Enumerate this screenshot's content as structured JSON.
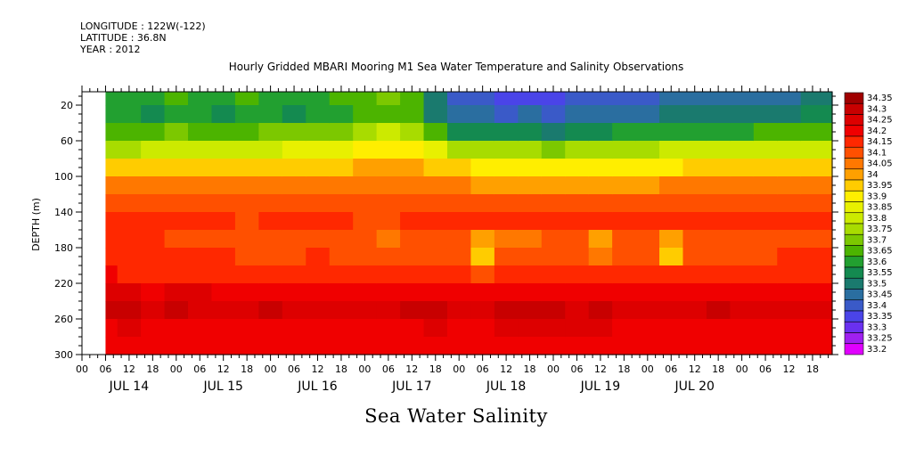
{
  "header": {
    "longitude": "LONGITUDE : 122W(-122)",
    "latitude": "LATITUDE : 36.8N",
    "year": "YEAR : 2012"
  },
  "chart_data": {
    "type": "heatmap",
    "title": "Hourly Gridded MBARI Mooring M1 Sea Water Temperature and Salinity Observations",
    "subtitle": "Sea Water Salinity",
    "ylabel": "DEPTH (m)",
    "ylim": [
      300,
      5
    ],
    "y_ticks": [
      20,
      60,
      100,
      140,
      180,
      220,
      260,
      300
    ],
    "x_hour_ticks": [
      "00",
      "06",
      "12",
      "18",
      "00",
      "06",
      "12",
      "18",
      "00",
      "06",
      "12",
      "18",
      "00",
      "06",
      "12",
      "18",
      "00",
      "06",
      "12",
      "18",
      "00",
      "06",
      "12",
      "18",
      "00",
      "06",
      "12",
      "18",
      "00",
      "06",
      "12",
      "18"
    ],
    "x_day_labels": [
      "JUL 14",
      "JUL 15",
      "JUL 16",
      "JUL 17",
      "JUL 18",
      "JUL 19",
      "JUL 20"
    ],
    "x_range_hours": [
      0,
      191
    ],
    "data_start_hour": 6,
    "colorbar_levels": [
      "34.35",
      "34.3",
      "34.25",
      "34.2",
      "34.15",
      "34.1",
      "34.05",
      "34",
      "33.95",
      "33.9",
      "33.85",
      "33.8",
      "33.75",
      "33.7",
      "33.65",
      "33.6",
      "33.55",
      "33.5",
      "33.45",
      "33.4",
      "33.35",
      "33.3",
      "33.25",
      "33.2"
    ],
    "colorbar_colors": [
      "#a00000",
      "#c80000",
      "#dd0000",
      "#f00000",
      "#ff2800",
      "#ff5000",
      "#ff7800",
      "#ffa000",
      "#ffcc00",
      "#ffee00",
      "#e8f000",
      "#ccea00",
      "#a8dc00",
      "#7cc800",
      "#4cb400",
      "#22a030",
      "#148a50",
      "#1a7a6e",
      "#2a6ea0",
      "#3a5ac8",
      "#4a44e8",
      "#6a30f0",
      "#a020f0",
      "#e000ff"
    ],
    "time_hours": [
      6,
      12,
      18,
      24,
      30,
      36,
      42,
      48,
      54,
      60,
      66,
      72,
      78,
      84,
      90,
      96,
      102,
      108,
      114,
      120,
      126,
      132,
      138,
      144,
      150,
      156,
      162,
      168,
      174,
      180,
      186,
      191
    ],
    "depth_bins": [
      10,
      30,
      50,
      70,
      90,
      110,
      130,
      150,
      170,
      190,
      210,
      230,
      250,
      270,
      290
    ],
    "salinity": [
      [
        33.6,
        33.6,
        33.65,
        33.75,
        33.95,
        34.05,
        34.1,
        34.15,
        34.15,
        34.15,
        34.2,
        34.25,
        34.3,
        34.2,
        34.2
      ],
      [
        33.6,
        33.6,
        33.65,
        33.75,
        33.95,
        34.05,
        34.1,
        34.15,
        34.15,
        34.15,
        34.15,
        34.25,
        34.3,
        34.25,
        34.2
      ],
      [
        33.6,
        33.55,
        33.65,
        33.8,
        33.95,
        34.05,
        34.1,
        34.15,
        34.15,
        34.15,
        34.15,
        34.2,
        34.25,
        34.2,
        34.2
      ],
      [
        33.65,
        33.6,
        33.7,
        33.8,
        33.95,
        34.05,
        34.1,
        34.15,
        34.1,
        34.15,
        34.15,
        34.25,
        34.3,
        34.2,
        34.2
      ],
      [
        33.6,
        33.6,
        33.65,
        33.8,
        33.95,
        34.05,
        34.1,
        34.15,
        34.1,
        34.15,
        34.15,
        34.25,
        34.25,
        34.2,
        34.2
      ],
      [
        33.6,
        33.55,
        33.65,
        33.8,
        33.95,
        34.05,
        34.1,
        34.15,
        34.1,
        34.15,
        34.15,
        34.2,
        34.25,
        34.2,
        34.2
      ],
      [
        33.65,
        33.6,
        33.65,
        33.8,
        33.95,
        34.05,
        34.1,
        34.1,
        34.1,
        34.1,
        34.15,
        34.2,
        34.25,
        34.2,
        34.2
      ],
      [
        33.6,
        33.6,
        33.7,
        33.8,
        33.95,
        34.05,
        34.1,
        34.15,
        34.1,
        34.1,
        34.15,
        34.2,
        34.3,
        34.2,
        34.2
      ],
      [
        33.6,
        33.55,
        33.7,
        33.85,
        33.95,
        34.05,
        34.1,
        34.15,
        34.1,
        34.1,
        34.15,
        34.2,
        34.25,
        34.2,
        34.2
      ],
      [
        33.6,
        33.6,
        33.7,
        33.85,
        33.95,
        34.05,
        34.1,
        34.15,
        34.1,
        34.15,
        34.15,
        34.2,
        34.25,
        34.2,
        34.2
      ],
      [
        33.65,
        33.6,
        33.7,
        33.85,
        33.95,
        34.05,
        34.1,
        34.15,
        34.1,
        34.1,
        34.15,
        34.2,
        34.25,
        34.2,
        34.2
      ],
      [
        33.65,
        33.65,
        33.75,
        33.9,
        34.0,
        34.05,
        34.1,
        34.1,
        34.1,
        34.1,
        34.15,
        34.2,
        34.25,
        34.2,
        34.2
      ],
      [
        33.7,
        33.65,
        33.8,
        33.9,
        34.0,
        34.05,
        34.1,
        34.1,
        34.05,
        34.1,
        34.15,
        34.2,
        34.25,
        34.2,
        34.2
      ],
      [
        33.65,
        33.65,
        33.75,
        33.9,
        34.0,
        34.05,
        34.1,
        34.15,
        34.1,
        34.1,
        34.15,
        34.2,
        34.3,
        34.2,
        34.2
      ],
      [
        33.5,
        33.5,
        33.65,
        33.85,
        33.95,
        34.05,
        34.1,
        34.15,
        34.1,
        34.1,
        34.15,
        34.2,
        34.3,
        34.25,
        34.2
      ],
      [
        33.4,
        33.45,
        33.55,
        33.75,
        33.95,
        34.05,
        34.1,
        34.15,
        34.1,
        34.1,
        34.15,
        34.2,
        34.25,
        34.2,
        34.2
      ],
      [
        33.4,
        33.45,
        33.55,
        33.75,
        33.9,
        34.0,
        34.1,
        34.15,
        34.0,
        33.95,
        34.1,
        34.2,
        34.25,
        34.2,
        34.2
      ],
      [
        33.35,
        33.4,
        33.55,
        33.75,
        33.9,
        34.0,
        34.1,
        34.15,
        34.05,
        34.1,
        34.15,
        34.2,
        34.3,
        34.25,
        34.2
      ],
      [
        33.35,
        33.45,
        33.55,
        33.75,
        33.9,
        34.0,
        34.1,
        34.15,
        34.05,
        34.1,
        34.15,
        34.2,
        34.3,
        34.25,
        34.2
      ],
      [
        33.35,
        33.4,
        33.5,
        33.7,
        33.9,
        34.0,
        34.1,
        34.15,
        34.1,
        34.1,
        34.15,
        34.2,
        34.3,
        34.25,
        34.2
      ],
      [
        33.4,
        33.45,
        33.55,
        33.75,
        33.9,
        34.0,
        34.1,
        34.15,
        34.1,
        34.1,
        34.15,
        34.2,
        34.25,
        34.25,
        34.2
      ],
      [
        33.4,
        33.45,
        33.55,
        33.75,
        33.9,
        34.0,
        34.1,
        34.15,
        34.0,
        34.05,
        34.15,
        34.2,
        34.3,
        34.25,
        34.2
      ],
      [
        33.4,
        33.45,
        33.6,
        33.75,
        33.9,
        34.0,
        34.1,
        34.15,
        34.1,
        34.1,
        34.15,
        34.2,
        34.25,
        34.2,
        34.2
      ],
      [
        33.4,
        33.45,
        33.6,
        33.75,
        33.9,
        34.0,
        34.1,
        34.15,
        34.1,
        34.1,
        34.15,
        34.2,
        34.25,
        34.2,
        34.2
      ],
      [
        33.45,
        33.5,
        33.6,
        33.8,
        33.9,
        34.05,
        34.1,
        34.15,
        34.0,
        33.95,
        34.15,
        34.2,
        34.25,
        34.2,
        34.2
      ],
      [
        33.45,
        33.5,
        33.6,
        33.8,
        33.95,
        34.05,
        34.1,
        34.15,
        34.1,
        34.1,
        34.15,
        34.2,
        34.25,
        34.2,
        34.2
      ],
      [
        33.45,
        33.5,
        33.6,
        33.8,
        33.95,
        34.05,
        34.1,
        34.15,
        34.1,
        34.1,
        34.15,
        34.2,
        34.3,
        34.2,
        34.2
      ],
      [
        33.45,
        33.5,
        33.6,
        33.8,
        33.95,
        34.05,
        34.1,
        34.15,
        34.1,
        34.1,
        34.15,
        34.2,
        34.25,
        34.2,
        34.2
      ],
      [
        33.45,
        33.5,
        33.65,
        33.8,
        33.95,
        34.05,
        34.1,
        34.15,
        34.1,
        34.1,
        34.15,
        34.2,
        34.25,
        34.2,
        34.2
      ],
      [
        33.45,
        33.5,
        33.65,
        33.8,
        33.95,
        34.05,
        34.1,
        34.15,
        34.1,
        34.15,
        34.15,
        34.2,
        34.25,
        34.2,
        34.2
      ],
      [
        33.5,
        33.55,
        33.65,
        33.8,
        33.95,
        34.05,
        34.1,
        34.15,
        34.1,
        34.15,
        34.15,
        34.2,
        34.25,
        34.2,
        34.2
      ],
      [
        33.5,
        33.55,
        33.65,
        33.8,
        33.95,
        34.05,
        34.1,
        34.15,
        34.1,
        34.15,
        34.15,
        34.2,
        34.25,
        34.2,
        34.2
      ]
    ]
  }
}
